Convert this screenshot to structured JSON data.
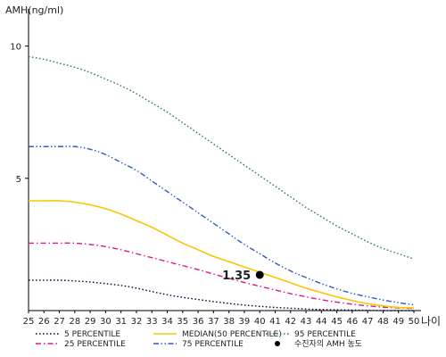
{
  "chart_data": {
    "type": "line",
    "ylabel": "AMH(ng/ml)",
    "xlabel": "나이",
    "x": [
      25,
      26,
      27,
      28,
      29,
      30,
      31,
      32,
      33,
      34,
      35,
      36,
      37,
      38,
      39,
      40,
      41,
      42,
      43,
      44,
      45,
      46,
      47,
      48,
      49,
      50
    ],
    "xlim": [
      25,
      50
    ],
    "ylim": [
      0,
      11
    ],
    "yticks": [
      5,
      10
    ],
    "grid": false,
    "legend_position": "bottom",
    "series": [
      {
        "name": "5 PERCENTILE",
        "color": "#0a0a3a",
        "style": "dotted",
        "values": [
          1.15,
          1.15,
          1.15,
          1.12,
          1.08,
          1.02,
          0.95,
          0.85,
          0.72,
          0.6,
          0.5,
          0.42,
          0.34,
          0.27,
          0.21,
          0.16,
          0.12,
          0.09,
          0.06,
          0.04,
          0.03,
          0.02,
          0.01,
          0.0,
          0.0,
          0.0
        ]
      },
      {
        "name": "25 PERCENTILE",
        "color": "#d81b8c",
        "style": "dashdot",
        "values": [
          2.55,
          2.55,
          2.55,
          2.55,
          2.5,
          2.42,
          2.3,
          2.15,
          2.0,
          1.85,
          1.7,
          1.55,
          1.38,
          1.22,
          1.06,
          0.92,
          0.78,
          0.64,
          0.52,
          0.41,
          0.32,
          0.24,
          0.18,
          0.13,
          0.1,
          0.08
        ]
      },
      {
        "name": "75 PERCENTILE",
        "color": "#3355cc",
        "style": "dashdotdot",
        "values": [
          6.2,
          6.2,
          6.2,
          6.2,
          6.1,
          5.9,
          5.6,
          5.3,
          4.9,
          4.5,
          4.1,
          3.7,
          3.3,
          2.9,
          2.5,
          2.15,
          1.8,
          1.5,
          1.25,
          1.02,
          0.82,
          0.65,
          0.52,
          0.4,
          0.3,
          0.22
        ]
      },
      {
        "name": "95 PERCENTILE",
        "color": "#2e7d4f",
        "style": "dotted",
        "values": [
          9.6,
          9.5,
          9.35,
          9.2,
          9.0,
          8.75,
          8.5,
          8.2,
          7.85,
          7.5,
          7.1,
          6.7,
          6.3,
          5.9,
          5.5,
          5.1,
          4.7,
          4.3,
          3.9,
          3.55,
          3.2,
          2.9,
          2.6,
          2.35,
          2.15,
          1.95
        ]
      },
      {
        "name": "MEDIAN(50 PERCENTILE)",
        "color": "#f5c800",
        "style": "solid",
        "values": [
          4.15,
          4.15,
          4.15,
          4.1,
          4.0,
          3.85,
          3.65,
          3.4,
          3.15,
          2.85,
          2.55,
          2.3,
          2.05,
          1.85,
          1.65,
          1.45,
          1.25,
          1.05,
          0.85,
          0.68,
          0.52,
          0.38,
          0.26,
          0.18,
          0.12,
          0.1
        ]
      }
    ],
    "annotation": {
      "name": "수진자의 AMH 농도",
      "x": 40,
      "y": 1.35,
      "label": "1.35",
      "color": "#000000"
    },
    "legend_order": [
      "5 PERCENTILE",
      "25 PERCENTILE",
      "MEDIAN(50 PERCENTILE)",
      "75 PERCENTILE",
      "95 PERCENTILE",
      "수진자의 AMH 농도"
    ]
  }
}
